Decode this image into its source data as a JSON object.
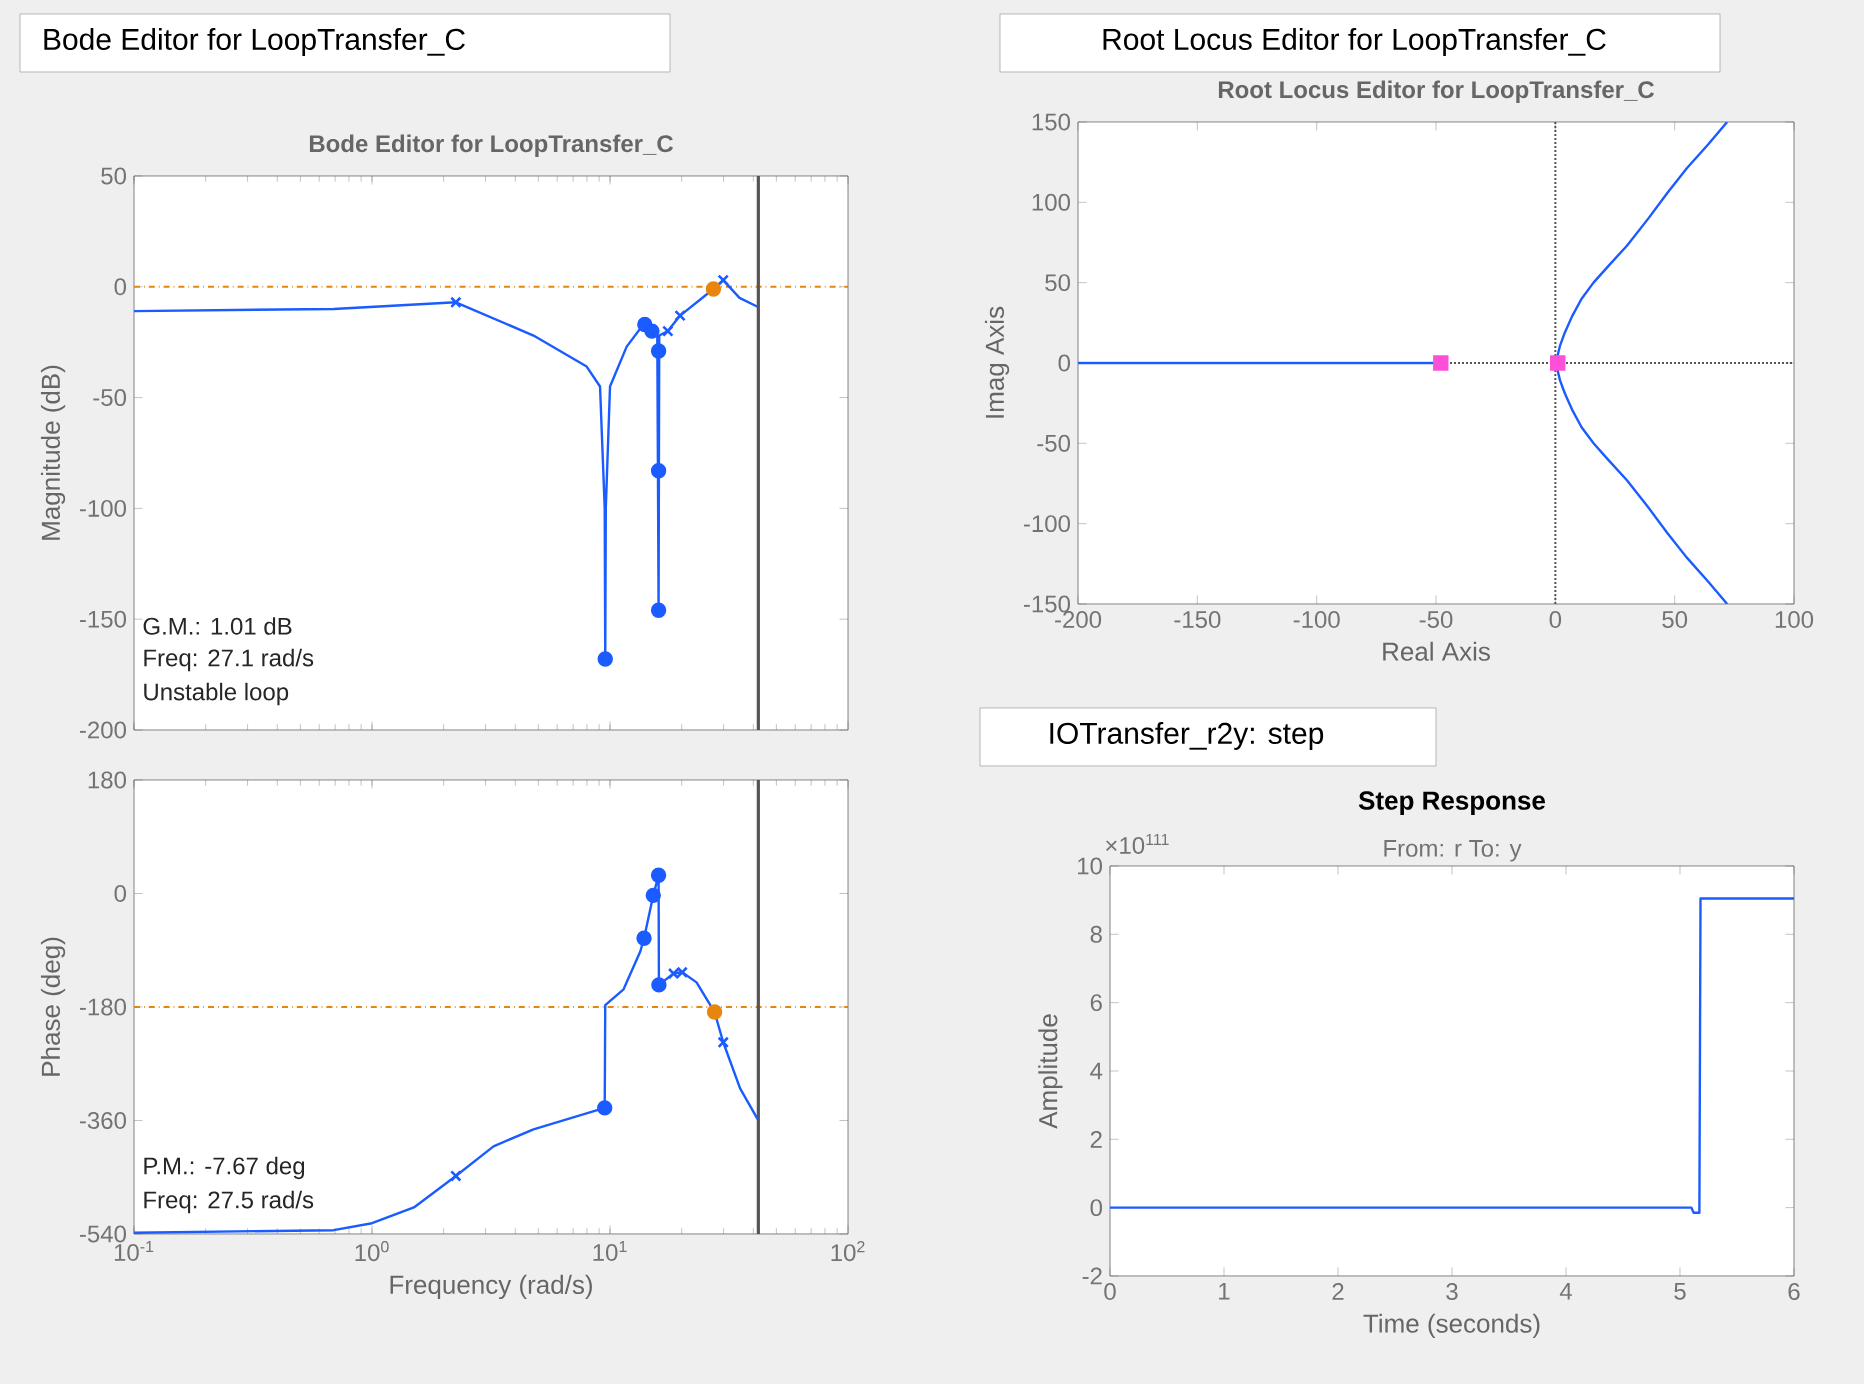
{
  "chart_data": [
    {
      "type": "line",
      "title": "Bode Editor for LoopTransfer_C",
      "ylabel": "Magnitude (dB)",
      "log": "x",
      "tick_labels": "y",
      "xlim": [
        0.1,
        100
      ],
      "xticks": [
        {
          "value": 0.1,
          "label": null
        },
        {
          "value": 1,
          "label": null
        },
        {
          "value": 10,
          "label": null
        },
        {
          "value": 100,
          "label": null
        }
      ],
      "ylim": [
        -200,
        50
      ],
      "yticks": [
        -200,
        -150,
        -100,
        -50,
        0,
        50
      ],
      "annotations": [
        "Bode Editor for LoopTransfer_C",
        "G.M.: 1.01 dB",
        "Freq: 27.1 rad/s",
        "Unstable loop"
      ],
      "ref_lines": [
        {
          "axis": "y",
          "value": 0,
          "color": "#e8850c",
          "line_style": "dashdot"
        },
        {
          "axis": "x",
          "value": 42,
          "color": "#555555",
          "line_style": "solid"
        }
      ],
      "series": [
        {
          "color": "#1a5cff",
          "x": [
            0.1,
            0.69,
            2.25,
            4.77,
            7.98,
            9.08,
            9.5,
            9.55,
            9.6,
            10,
            11.75,
            13.8,
            15,
            15.8,
            16,
            16.1,
            17.5,
            19.7,
            27.2,
            29.9,
            35,
            41.7
          ],
          "values": [
            -11,
            -10,
            -7,
            -22,
            -36,
            -45,
            -100,
            -168,
            -100,
            -45,
            -27,
            -17,
            -20,
            -22,
            -146,
            -22,
            -20,
            -13,
            -1,
            3,
            -5,
            -9
          ]
        },
        {
          "type": "scatter",
          "marker": "cross",
          "color": "#1a5cff",
          "x": [
            2.25,
            17.5,
            19.7,
            29.9
          ],
          "values": [
            -7,
            -20,
            -13,
            3
          ]
        },
        {
          "type": "scatter",
          "marker": "circle",
          "color": "#1a5cff",
          "x": [
            9.55,
            14,
            15,
            16,
            16,
            16
          ],
          "values": [
            -168,
            -17,
            -20,
            -29,
            -83,
            -146
          ]
        },
        {
          "type": "scatter",
          "marker": "circle",
          "color": "#e8850c",
          "x": [
            27.2
          ],
          "values": [
            -1
          ]
        }
      ]
    },
    {
      "type": "line",
      "xlabel": "Frequency (rad/s)",
      "ylabel": "Phase (deg)",
      "log": "x",
      "xlim": [
        0.1,
        100
      ],
      "xticks": [
        {
          "value": 0.1,
          "label": "10$^{-1}$"
        },
        {
          "value": 1,
          "label": "10$^{0}$"
        },
        {
          "value": 10,
          "label": "10$^{1}$"
        },
        {
          "value": 100,
          "label": "10$^{2}$"
        }
      ],
      "ylim": [
        -540,
        180
      ],
      "yticks": [
        -540,
        -360,
        -180,
        0,
        180
      ],
      "annotations": [
        "P.M.: -7.67 deg",
        "Freq: 27.5 rad/s"
      ],
      "ref_lines": [
        {
          "axis": "y",
          "value": -180,
          "color": "#e8850c",
          "line_style": "dashdot"
        },
        {
          "axis": "x",
          "value": 42,
          "color": "#555555",
          "line_style": "solid"
        }
      ],
      "series": [
        {
          "color": "#1a5cff",
          "x": [
            0.1,
            0.69,
            1,
            1.5,
            2.25,
            3.24,
            4.77,
            9.5,
            9.55,
            11.4,
            13.4,
            13.9,
            15.2,
            16,
            16.05,
            18.5,
            20.1,
            23.1,
            27.5,
            29.9,
            35.2,
            41.7
          ],
          "values": [
            -538,
            -534,
            -523,
            -498,
            -448,
            -401,
            -374,
            -340,
            -177,
            -152,
            -92,
            -71,
            -3,
            29,
            -145,
            -127,
            -125,
            -141,
            -188,
            -236,
            -309,
            -358
          ]
        },
        {
          "type": "scatter",
          "marker": "cross",
          "color": "#1a5cff",
          "x": [
            2.25,
            18.5,
            20.1,
            29.9
          ],
          "values": [
            -448,
            -127,
            -125,
            -236
          ]
        },
        {
          "type": "scatter",
          "marker": "circle",
          "color": "#1a5cff",
          "x": [
            9.5,
            13.9,
            15.2,
            16,
            16.05
          ],
          "values": [
            -340,
            -71,
            -3,
            29,
            -145
          ]
        },
        {
          "type": "scatter",
          "marker": "circle",
          "color": "#e8850c",
          "x": [
            27.5
          ],
          "values": [
            -188
          ]
        }
      ]
    },
    {
      "type": "line",
      "title": "Root Locus Editor for LoopTransfer_C",
      "xlabel": "Real Axis",
      "ylabel": "Imag Axis",
      "xlim": [
        -200,
        100
      ],
      "xticks": [
        -200,
        -150,
        -100,
        -50,
        0,
        50,
        100
      ],
      "ylim": [
        -150,
        150
      ],
      "yticks": [
        -150,
        -100,
        -50,
        0,
        50,
        100,
        150
      ],
      "annotations": [
        "Root Locus Editor for LoopTransfer_C"
      ],
      "ref_lines": [
        {
          "axis": "x",
          "value": 0,
          "color": "#555555",
          "line_style": "dotted"
        },
        {
          "axis": "y",
          "value": 0,
          "color": "#555555",
          "line_style": "dotted"
        }
      ],
      "series": [
        {
          "color": "#1a5cff",
          "x": [
            -200,
            -48
          ],
          "values": [
            0,
            0
          ]
        },
        {
          "color": "#1a5cff",
          "x": [
            1,
            1,
            2,
            4,
            7,
            11,
            16,
            22,
            30,
            39,
            47,
            55,
            64,
            72
          ],
          "values": [
            0,
            5,
            11,
            19,
            29,
            40,
            50,
            60,
            73,
            90,
            106,
            121,
            136,
            150
          ]
        },
        {
          "color": "#1a5cff",
          "x": [
            1,
            1,
            2,
            4,
            7,
            11,
            16,
            22,
            30,
            39,
            47,
            55,
            64,
            72
          ],
          "values": [
            0,
            -5,
            -11,
            -19,
            -29,
            -40,
            -50,
            -60,
            -73,
            -90,
            -106,
            -121,
            -136,
            -150
          ]
        },
        {
          "type": "scatter",
          "marker": "square",
          "color": "#ff4fd8",
          "x": [
            -48,
            1
          ],
          "values": [
            0,
            0
          ]
        }
      ]
    },
    {
      "type": "line",
      "title": "Step Response",
      "subtitle": "From: r  To: y",
      "xlabel": "Time (seconds)",
      "ylabel": "Amplitude",
      "xlim": [
        0,
        6
      ],
      "xticks": [
        0,
        1,
        2,
        3,
        4,
        5,
        6
      ],
      "ylim": [
        -2,
        10
      ],
      "yticks": [
        -2,
        0,
        2,
        4,
        6,
        8,
        10
      ],
      "annotations": [
        "IOTransfer_r2y: step",
        "×10$^{111}$"
      ],
      "series": [
        {
          "color": "#1a5cff",
          "x": [
            0,
            5.1,
            5.12,
            5.17,
            5.18,
            6
          ],
          "values": [
            0,
            0,
            -0.15,
            -0.15,
            9.05,
            9.05
          ]
        }
      ]
    }
  ]
}
